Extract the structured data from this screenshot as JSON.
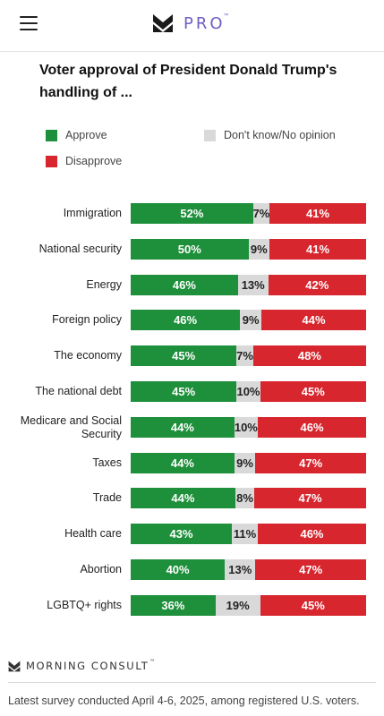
{
  "header": {
    "brand_text": "PRO",
    "brand_tm": "™",
    "icons": {
      "menu": "hamburger-menu-icon",
      "logo": "morning-consult-m-logo-icon"
    }
  },
  "chart_data": {
    "type": "bar",
    "orientation": "horizontal",
    "stacked": true,
    "title": "Voter approval of President Donald Trump's handling of ...",
    "legend": [
      {
        "label": "Approve",
        "color": "#1e8f3a"
      },
      {
        "label": "Don't know/No opinion",
        "color": "#d9d9d9"
      },
      {
        "label": "Disapprove",
        "color": "#d7262e"
      }
    ],
    "legend_placement": "top",
    "categories": [
      "Immigration",
      "National security",
      "Energy",
      "Foreign policy",
      "The economy",
      "The national debt",
      "Medicare and Social Security",
      "Taxes",
      "Trade",
      "Health care",
      "Abortion",
      "LGBTQ+ rights"
    ],
    "series": [
      {
        "name": "Approve",
        "color": "#1e8f3a",
        "values": [
          52,
          50,
          46,
          46,
          45,
          45,
          44,
          44,
          44,
          43,
          40,
          36
        ]
      },
      {
        "name": "Don't know/No opinion",
        "color": "#d9d9d9",
        "values": [
          7,
          9,
          13,
          9,
          7,
          10,
          10,
          9,
          8,
          11,
          13,
          19
        ]
      },
      {
        "name": "Disapprove",
        "color": "#d7262e",
        "values": [
          41,
          41,
          42,
          44,
          48,
          45,
          46,
          47,
          47,
          46,
          47,
          45
        ]
      }
    ],
    "value_suffix": "%",
    "grid": false
  },
  "footer": {
    "logo_text": "MORNING CONSULT",
    "logo_tm": "™",
    "note": "Latest survey conducted April 4-6, 2025, among registered U.S. voters."
  }
}
